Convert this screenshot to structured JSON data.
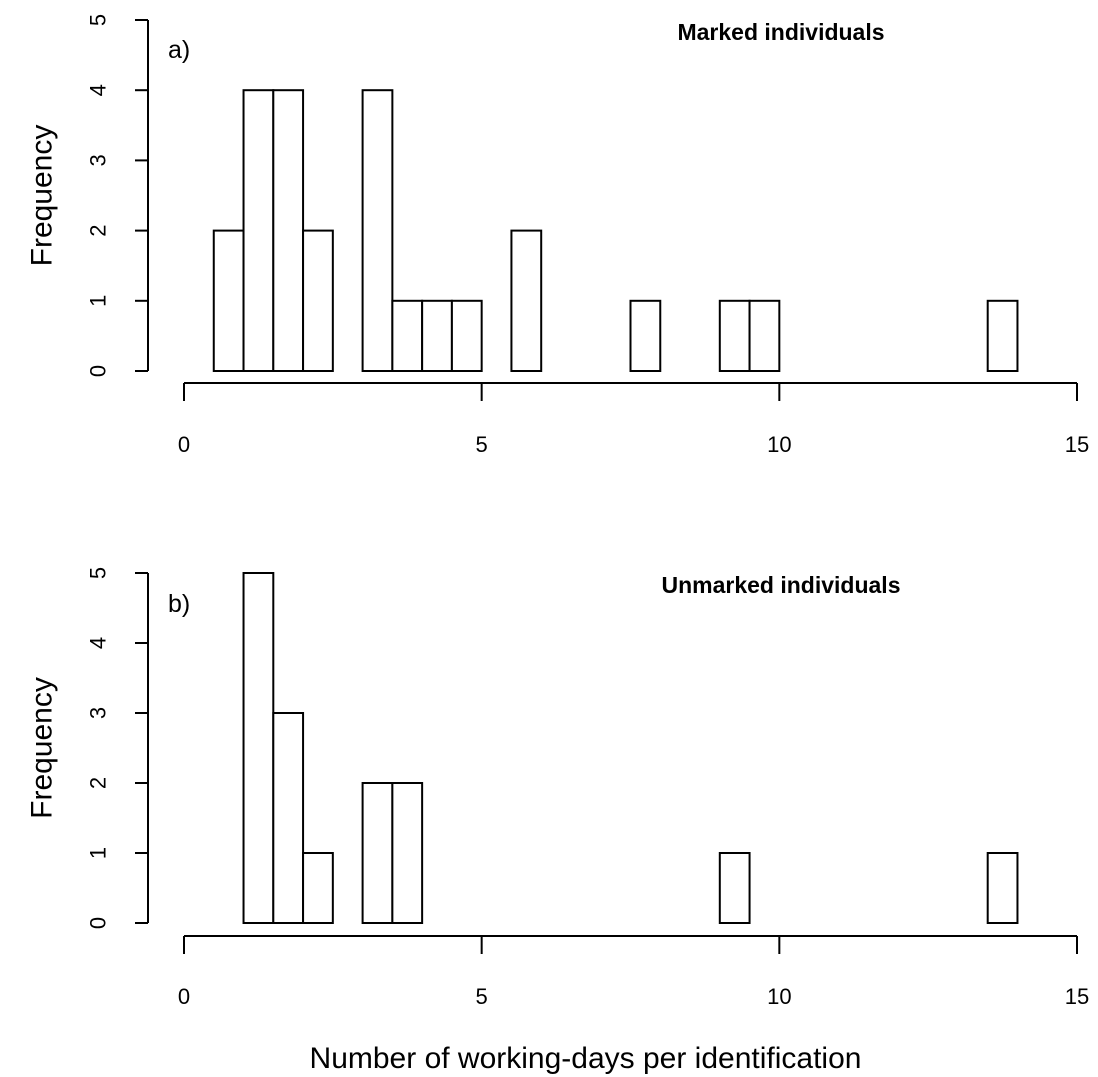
{
  "chart_data": [
    {
      "type": "bar",
      "panel_label": "a)",
      "title": "Marked individuals",
      "ylabel": "Frequency",
      "xlabel": "",
      "bin_width": 0.5,
      "bin_start": [
        0.5,
        1.0,
        1.5,
        2.0,
        2.5,
        3.0,
        3.5,
        4.0,
        4.5,
        5.0,
        5.5,
        6.0,
        6.5,
        7.0,
        7.5,
        8.0,
        8.5,
        9.0,
        9.5,
        10.0,
        10.5,
        11.0,
        11.5,
        12.0,
        12.5,
        13.0,
        13.5
      ],
      "values": [
        2,
        4,
        4,
        2,
        0,
        4,
        1,
        1,
        1,
        0,
        2,
        0,
        0,
        0,
        1,
        0,
        0,
        1,
        1,
        0,
        0,
        0,
        0,
        0,
        0,
        0,
        1
      ],
      "xlim": [
        0,
        15
      ],
      "ylim": [
        0,
        5
      ],
      "xticks": [
        "0",
        "5",
        "10",
        "15"
      ],
      "yticks": [
        "0",
        "1",
        "2",
        "3",
        "4",
        "5"
      ],
      "grid": false
    },
    {
      "type": "bar",
      "panel_label": "b)",
      "title": "Unmarked individuals",
      "ylabel": "Frequency",
      "xlabel": "Number of working-days per identification",
      "bin_width": 0.5,
      "bin_start": [
        1.0,
        1.5,
        2.0,
        2.5,
        3.0,
        3.5,
        4.0,
        4.5,
        5.0,
        5.5,
        6.0,
        6.5,
        7.0,
        7.5,
        8.0,
        8.5,
        9.0,
        9.5,
        10.0,
        10.5,
        11.0,
        11.5,
        12.0,
        12.5,
        13.0,
        13.5
      ],
      "values": [
        5,
        3,
        1,
        0,
        2,
        2,
        0,
        0,
        0,
        0,
        0,
        0,
        0,
        0,
        0,
        0,
        1,
        0,
        0,
        0,
        0,
        0,
        0,
        0,
        0,
        1
      ],
      "xlim": [
        0,
        15
      ],
      "ylim": [
        0,
        5
      ],
      "xticks": [
        "0",
        "5",
        "10",
        "15"
      ],
      "yticks": [
        "0",
        "1",
        "2",
        "3",
        "4",
        "5"
      ],
      "grid": false
    }
  ]
}
